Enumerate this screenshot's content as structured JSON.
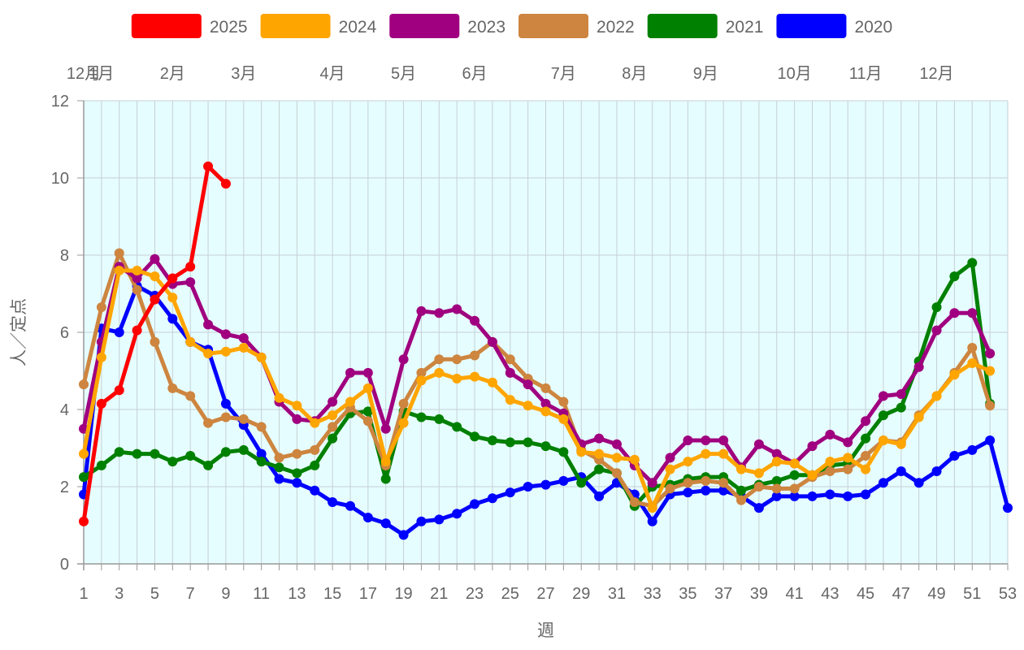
{
  "chart_data": {
    "type": "line",
    "xlabel": "週",
    "ylabel": "人／定点",
    "ylim": [
      0,
      12
    ],
    "yticks": [
      0,
      2,
      4,
      6,
      8,
      10,
      12
    ],
    "xlim": [
      1,
      53
    ],
    "xticks": [
      1,
      3,
      5,
      7,
      9,
      11,
      13,
      15,
      17,
      19,
      21,
      23,
      25,
      27,
      29,
      31,
      33,
      35,
      37,
      39,
      41,
      43,
      45,
      47,
      49,
      51,
      53
    ],
    "month_labels": [
      {
        "label": "12月",
        "week": 1
      },
      {
        "label": "1月",
        "week": 2
      },
      {
        "label": "2月",
        "week": 6
      },
      {
        "label": "3月",
        "week": 10
      },
      {
        "label": "4月",
        "week": 15
      },
      {
        "label": "5月",
        "week": 19
      },
      {
        "label": "6月",
        "week": 23
      },
      {
        "label": "7月",
        "week": 28
      },
      {
        "label": "8月",
        "week": 32
      },
      {
        "label": "9月",
        "week": 36
      },
      {
        "label": "10月",
        "week": 41
      },
      {
        "label": "11月",
        "week": 45
      },
      {
        "label": "12月",
        "week": 49
      }
    ],
    "plot_background": "#e6fdff",
    "grid": true,
    "legend_position": "top",
    "series": [
      {
        "name": "2025",
        "color": "#ff0000",
        "values": [
          1.1,
          4.15,
          4.5,
          6.05,
          6.85,
          7.4,
          7.7,
          10.3,
          9.85
        ]
      },
      {
        "name": "2024",
        "color": "#ffa500",
        "values": [
          2.85,
          5.35,
          7.6,
          7.6,
          7.45,
          6.9,
          5.75,
          5.45,
          5.5,
          5.6,
          5.35,
          4.3,
          4.1,
          3.65,
          3.85,
          4.2,
          4.55,
          2.65,
          3.65,
          4.75,
          4.95,
          4.8,
          4.85,
          4.7,
          4.25,
          4.1,
          3.95,
          3.75,
          2.9,
          2.85,
          2.75,
          2.7,
          1.45,
          2.45,
          2.65,
          2.85,
          2.85,
          2.45,
          2.35,
          2.65,
          2.6,
          2.3,
          2.65,
          2.75,
          2.45,
          3.2,
          3.1,
          3.8,
          4.35,
          4.9,
          5.2,
          5.0
        ]
      },
      {
        "name": "2023",
        "color": "#a0007f",
        "values": [
          3.5,
          5.75,
          7.7,
          7.4,
          7.9,
          7.25,
          7.3,
          6.2,
          5.95,
          5.85,
          5.35,
          4.2,
          3.75,
          3.7,
          4.2,
          4.95,
          4.95,
          3.5,
          5.3,
          6.55,
          6.5,
          6.6,
          6.3,
          5.75,
          4.95,
          4.65,
          4.15,
          3.9,
          3.1,
          3.25,
          3.1,
          2.55,
          2.1,
          2.75,
          3.2,
          3.2,
          3.2,
          2.5,
          3.1,
          2.85,
          2.6,
          3.05,
          3.35,
          3.15,
          3.7,
          4.35,
          4.4,
          5.1,
          6.05,
          6.5,
          6.5,
          5.45
        ]
      },
      {
        "name": "2022",
        "color": "#cd853f",
        "values": [
          4.65,
          6.65,
          8.05,
          7.1,
          5.75,
          4.55,
          4.35,
          3.65,
          3.8,
          3.75,
          3.55,
          2.75,
          2.85,
          2.95,
          3.55,
          4.05,
          3.7,
          2.55,
          4.15,
          4.95,
          5.3,
          5.3,
          5.4,
          5.75,
          5.3,
          4.8,
          4.55,
          4.2,
          2.95,
          2.7,
          2.35,
          1.6,
          1.5,
          1.95,
          2.1,
          2.15,
          2.1,
          1.65,
          2.0,
          1.95,
          1.95,
          2.25,
          2.4,
          2.45,
          2.8,
          3.2,
          3.15,
          3.85,
          4.35,
          4.95,
          5.6,
          4.1
        ]
      },
      {
        "name": "2021",
        "color": "#008000",
        "values": [
          2.25,
          2.55,
          2.9,
          2.85,
          2.85,
          2.65,
          2.8,
          2.55,
          2.9,
          2.95,
          2.65,
          2.5,
          2.35,
          2.55,
          3.25,
          3.9,
          3.95,
          2.2,
          3.95,
          3.8,
          3.75,
          3.55,
          3.3,
          3.2,
          3.15,
          3.15,
          3.05,
          2.9,
          2.1,
          2.45,
          2.35,
          1.5,
          2.0,
          2.05,
          2.2,
          2.25,
          2.25,
          1.9,
          2.05,
          2.15,
          2.3,
          2.3,
          2.55,
          2.6,
          3.25,
          3.85,
          4.05,
          5.25,
          6.65,
          7.45,
          7.8,
          4.15
        ]
      },
      {
        "name": "2020",
        "color": "#0000ff",
        "values": [
          1.8,
          6.1,
          6.0,
          7.2,
          6.95,
          6.35,
          5.75,
          5.55,
          4.15,
          3.6,
          2.85,
          2.2,
          2.1,
          1.9,
          1.6,
          1.5,
          1.2,
          1.05,
          0.75,
          1.1,
          1.15,
          1.3,
          1.55,
          1.7,
          1.85,
          2.0,
          2.05,
          2.15,
          2.25,
          1.75,
          2.1,
          1.8,
          1.1,
          1.8,
          1.85,
          1.9,
          1.9,
          1.75,
          1.45,
          1.75,
          1.75,
          1.75,
          1.8,
          1.75,
          1.8,
          2.1,
          2.4,
          2.1,
          2.4,
          2.8,
          2.95,
          3.2,
          1.45
        ]
      }
    ]
  }
}
